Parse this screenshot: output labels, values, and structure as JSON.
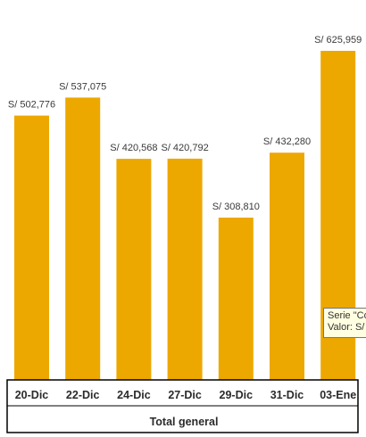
{
  "chart_data": {
    "type": "bar",
    "categories": [
      "20-Dic",
      "22-Dic",
      "24-Dic",
      "27-Dic",
      "29-Dic",
      "31-Dic",
      "03-Ene"
    ],
    "values": [
      502776,
      537075,
      420568,
      420792,
      308810,
      432280,
      625959
    ],
    "data_labels": [
      "S/ 502,776",
      "S/ 537,075",
      "S/ 420,568",
      "S/ 420,792",
      "S/ 308,810",
      "S/ 432,280",
      "S/ 625,959"
    ],
    "group_label": "Total general",
    "ylim": [
      0,
      720000
    ],
    "bar_color": "#EDA800",
    "grid": false,
    "legend": "none"
  },
  "tooltip": {
    "line1": "Serie \"Co",
    "line2": "Valor:  S/"
  }
}
